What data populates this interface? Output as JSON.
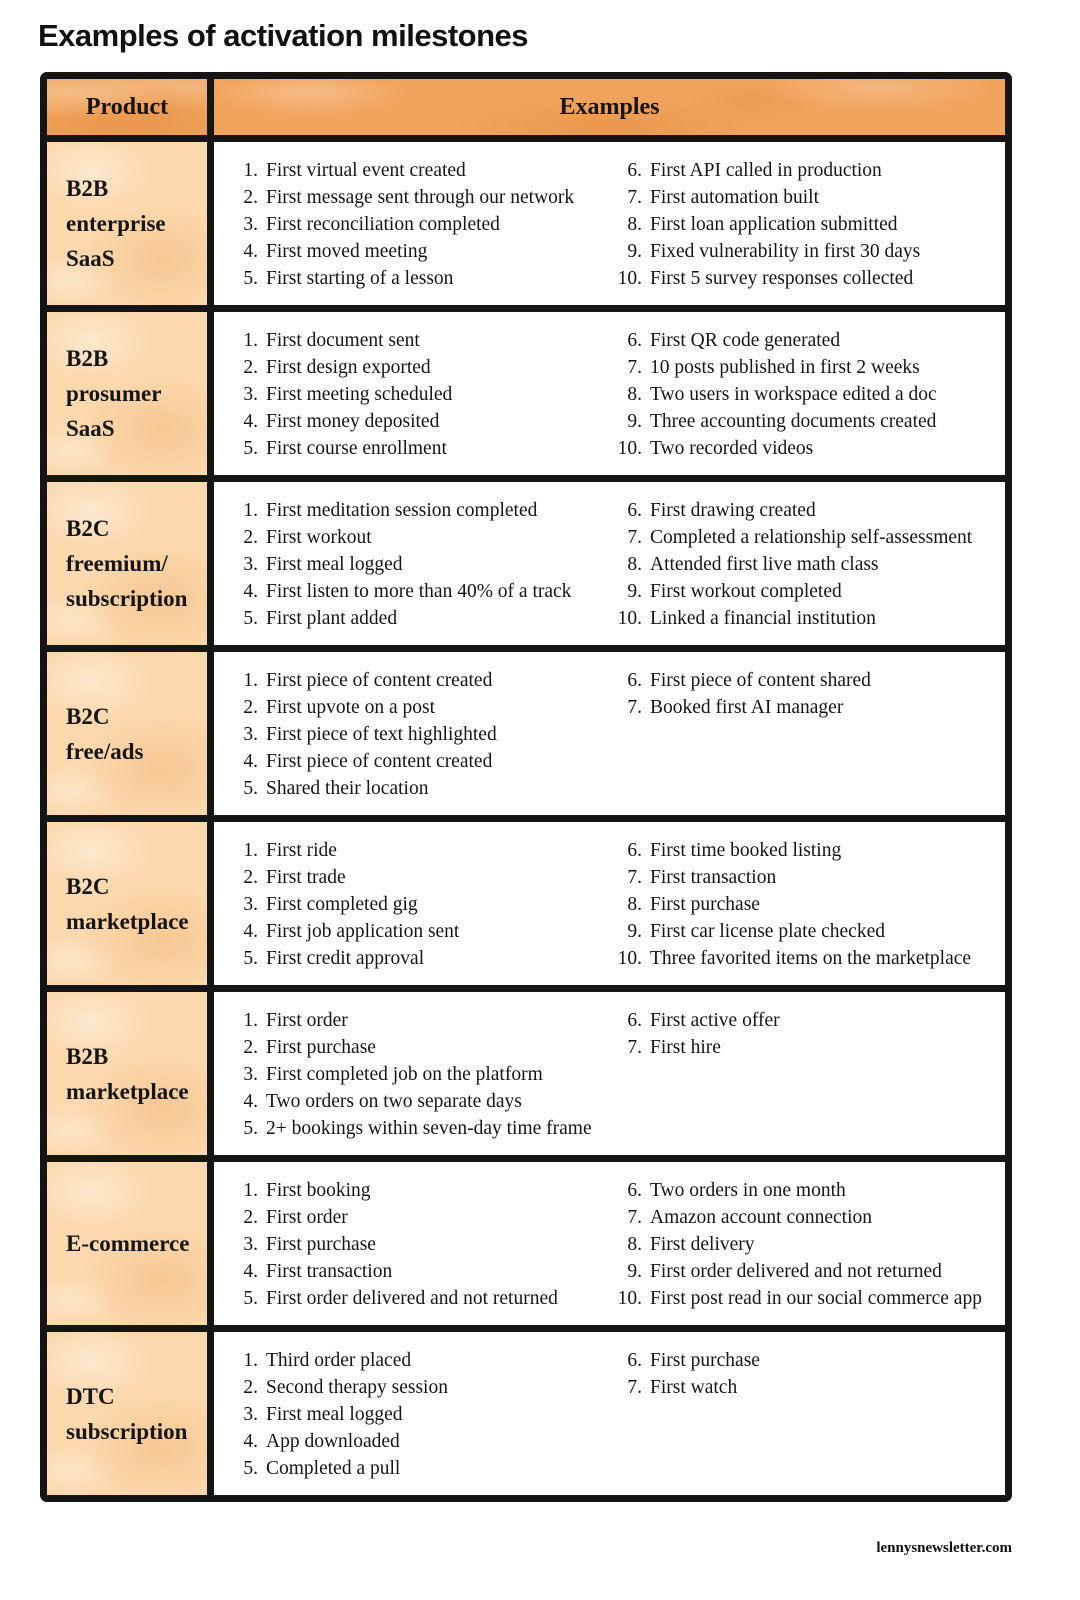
{
  "page": {
    "title": "Examples of activation milestones",
    "footer": "lennysnewsletter.com"
  },
  "table": {
    "headers": {
      "product": "Product",
      "examples": "Examples"
    },
    "colors": {
      "header_bg": "#f1a35c",
      "cell_bg": "#fbd8ad",
      "border": "#151515"
    },
    "rows": [
      {
        "product": "B2B\nenterprise\nSaaS",
        "items_left": [
          "First virtual event created",
          "First message sent through our network",
          "First reconciliation completed",
          "First moved meeting",
          "First starting of a lesson"
        ],
        "items_right": [
          "First API called in production",
          "First automation built",
          "First loan application submitted",
          "Fixed vulnerability in first 30 days",
          "First 5 survey responses collected"
        ]
      },
      {
        "product": "B2B\nprosumer\nSaaS",
        "items_left": [
          "First document sent",
          "First design exported",
          "First meeting scheduled",
          "First money deposited",
          "First course enrollment"
        ],
        "items_right": [
          "First QR code generated",
          "10 posts published in first 2 weeks",
          "Two users in workspace edited a doc",
          "Three accounting documents created",
          "Two recorded videos"
        ]
      },
      {
        "product": "B2C\nfreemium/\nsubscription",
        "items_left": [
          "First meditation session completed",
          "First workout",
          "First meal logged",
          "First listen to more than 40% of a track",
          "First plant added"
        ],
        "items_right": [
          "First drawing created",
          "Completed a relationship self-assessment",
          "Attended first live math class",
          "First workout completed",
          "Linked a financial institution"
        ]
      },
      {
        "product": "B2C\nfree/ads",
        "items_left": [
          "First piece of content created",
          "First upvote on a post",
          "First piece of text highlighted",
          "First piece of content created",
          "Shared their location"
        ],
        "items_right": [
          "First piece of content shared",
          "Booked first AI manager"
        ]
      },
      {
        "product": "B2C\nmarketplace",
        "items_left": [
          "First ride",
          "First trade",
          "First completed gig",
          "First job application sent",
          "First credit approval"
        ],
        "items_right": [
          "First time booked listing",
          "First transaction",
          "First purchase",
          "First car license plate checked",
          "Three favorited items on the marketplace"
        ]
      },
      {
        "product": "B2B\nmarketplace",
        "items_left": [
          "First order",
          "First purchase",
          "First completed job on the platform",
          "Two orders on two separate days",
          "2+ bookings within seven-day time frame"
        ],
        "items_right": [
          "First active offer",
          "First hire"
        ]
      },
      {
        "product": "E-commerce",
        "items_left": [
          "First booking",
          "First order",
          "First purchase",
          "First transaction",
          "First order delivered and not returned"
        ],
        "items_right": [
          "Two orders in one month",
          "Amazon account connection",
          "First delivery",
          "First order delivered and not returned",
          "First post read in our social commerce app"
        ]
      },
      {
        "product": "DTC\nsubscription",
        "items_left": [
          "Third order placed",
          "Second therapy session",
          "First meal logged",
          "App downloaded",
          "Completed a pull"
        ],
        "items_right": [
          "First purchase",
          "First watch"
        ]
      }
    ]
  }
}
